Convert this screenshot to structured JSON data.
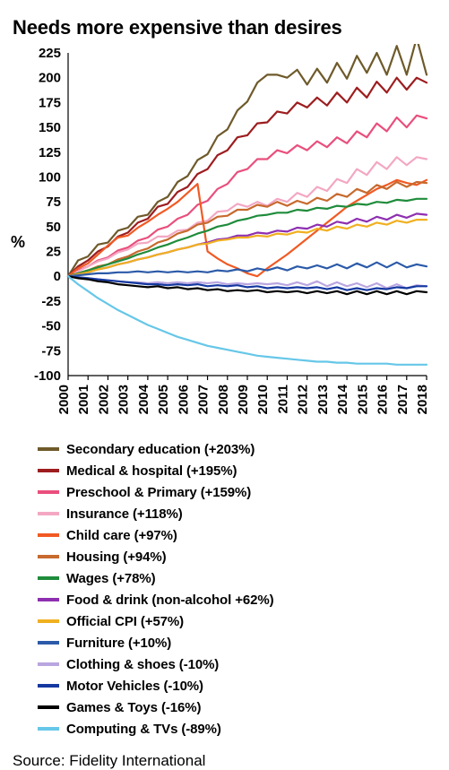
{
  "title": "Needs more expensive than desires",
  "pct_symbol": "%",
  "source": "Source: Fidelity International",
  "chart": {
    "type": "line",
    "background_color": "#ffffff",
    "axis_color": "#000000",
    "label_fontsize": 15,
    "label_fontweight": 700,
    "x": {
      "min": 2000,
      "max": 2018,
      "ticks": [
        2000,
        2001,
        2002,
        2003,
        2004,
        2005,
        2006,
        2007,
        2008,
        2009,
        2010,
        2011,
        2012,
        2013,
        2014,
        2015,
        2016,
        2017,
        2018
      ]
    },
    "y": {
      "min": -100,
      "max": 225,
      "ticks": [
        -100,
        -75,
        -50,
        -25,
        0,
        25,
        50,
        75,
        100,
        125,
        150,
        175,
        200,
        225
      ]
    },
    "series": [
      {
        "id": "secondary_education",
        "label": "Secondary education (+203%)",
        "color": "#6e5a2a",
        "values": [
          0,
          16,
          20,
          32,
          34,
          46,
          49,
          60,
          62,
          75,
          80,
          95,
          101,
          117,
          123,
          141,
          148,
          167,
          176,
          195,
          203,
          203,
          200,
          208,
          193,
          209,
          195,
          215,
          199,
          222,
          205,
          225,
          203,
          232,
          203,
          240,
          203
        ]
      },
      {
        "id": "medical_hospital",
        "label": "Medical & hospital (+195%)",
        "color": "#9d1d1f",
        "values": [
          0,
          10,
          16,
          25,
          30,
          40,
          44,
          54,
          58,
          70,
          73,
          85,
          90,
          103,
          108,
          122,
          127,
          140,
          142,
          154,
          155,
          166,
          164,
          175,
          170,
          180,
          172,
          185,
          175,
          190,
          180,
          196,
          185,
          200,
          188,
          200,
          195
        ]
      },
      {
        "id": "preschool_primary",
        "label": "Preschool  & Primary (+159%)",
        "color": "#e94f7d",
        "values": [
          0,
          6,
          10,
          16,
          19,
          26,
          29,
          36,
          39,
          47,
          50,
          58,
          62,
          72,
          76,
          88,
          93,
          105,
          108,
          118,
          118,
          127,
          124,
          132,
          127,
          136,
          130,
          140,
          134,
          146,
          140,
          154,
          146,
          160,
          150,
          162,
          159
        ]
      },
      {
        "id": "insurance",
        "label": "Insurance (+118%)",
        "color": "#f3a7c3",
        "values": [
          0,
          5,
          10,
          15,
          18,
          24,
          27,
          33,
          34,
          40,
          40,
          46,
          47,
          54,
          56,
          65,
          66,
          73,
          70,
          75,
          71,
          78,
          75,
          84,
          80,
          90,
          86,
          98,
          94,
          108,
          102,
          115,
          108,
          120,
          112,
          120,
          118
        ]
      },
      {
        "id": "child_care",
        "label": "Child care (+97%)",
        "color": "#f15a24",
        "values": [
          0,
          8,
          13,
          22,
          31,
          39,
          41,
          49,
          55,
          62,
          68,
          75,
          84,
          93,
          25,
          18,
          12,
          8,
          3,
          0,
          8,
          15,
          22,
          30,
          38,
          46,
          54,
          62,
          70,
          76,
          82,
          88,
          92,
          97,
          94,
          92,
          97
        ]
      },
      {
        "id": "housing",
        "label": "Housing (+94%)",
        "color": "#c76a2e",
        "values": [
          0,
          3,
          6,
          10,
          12,
          17,
          20,
          25,
          28,
          34,
          37,
          43,
          46,
          52,
          54,
          60,
          61,
          67,
          67,
          72,
          70,
          75,
          71,
          76,
          73,
          79,
          76,
          83,
          80,
          88,
          84,
          92,
          88,
          95,
          90,
          95,
          94
        ]
      },
      {
        "id": "wages",
        "label": "Wages (+78%)",
        "color": "#1f8c3b",
        "values": [
          0,
          3,
          6,
          9,
          12,
          15,
          18,
          22,
          25,
          29,
          32,
          36,
          39,
          43,
          46,
          50,
          52,
          56,
          58,
          61,
          62,
          64,
          64,
          67,
          66,
          69,
          68,
          71,
          70,
          73,
          72,
          75,
          74,
          77,
          76,
          78,
          78
        ]
      },
      {
        "id": "food_drink",
        "label": "Food & drink (non-alcohol +62%)",
        "color": "#8e2fb0",
        "values": [
          0,
          2,
          4,
          7,
          9,
          12,
          14,
          17,
          19,
          22,
          24,
          27,
          29,
          32,
          34,
          37,
          38,
          41,
          41,
          44,
          43,
          46,
          45,
          49,
          48,
          52,
          50,
          55,
          53,
          58,
          55,
          60,
          57,
          62,
          59,
          63,
          62
        ]
      },
      {
        "id": "official_cpi",
        "label": "Official CPI (+57%)",
        "color": "#f0b020",
        "values": [
          0,
          2,
          4,
          7,
          9,
          12,
          14,
          17,
          19,
          22,
          24,
          27,
          29,
          32,
          33,
          36,
          37,
          39,
          39,
          41,
          40,
          43,
          42,
          45,
          44,
          48,
          46,
          50,
          48,
          52,
          50,
          54,
          52,
          56,
          54,
          57,
          57
        ]
      },
      {
        "id": "furniture",
        "label": "Furniture (+10%)",
        "color": "#2b5aa8",
        "values": [
          0,
          1,
          2,
          3,
          3,
          4,
          4,
          5,
          4,
          5,
          4,
          5,
          4,
          5,
          4,
          6,
          5,
          7,
          5,
          8,
          6,
          9,
          6,
          10,
          8,
          11,
          8,
          12,
          8,
          13,
          9,
          14,
          9,
          14,
          9,
          12,
          10
        ]
      },
      {
        "id": "clothing_shoes",
        "label": "Clothing & shoes (-10%)",
        "color": "#b9a6e0",
        "values": [
          0,
          -1,
          -2,
          -3,
          -4,
          -5,
          -6,
          -6,
          -7,
          -6,
          -7,
          -6,
          -7,
          -6,
          -7,
          -6,
          -8,
          -7,
          -8,
          -7,
          -8,
          -7,
          -9,
          -6,
          -9,
          -5,
          -10,
          -6,
          -10,
          -7,
          -11,
          -7,
          -12,
          -8,
          -12,
          -9,
          -10
        ]
      },
      {
        "id": "motor_vehicles",
        "label": "Motor Vehicles (-10%)",
        "color": "#1438a0",
        "values": [
          0,
          -1,
          -2,
          -3,
          -4,
          -5,
          -6,
          -7,
          -8,
          -8,
          -9,
          -8,
          -9,
          -8,
          -10,
          -9,
          -10,
          -9,
          -11,
          -10,
          -12,
          -11,
          -12,
          -11,
          -12,
          -11,
          -13,
          -11,
          -14,
          -12,
          -14,
          -12,
          -13,
          -11,
          -12,
          -10,
          -10
        ]
      },
      {
        "id": "games_toys",
        "label": "Games & Toys (-16%)",
        "color": "#000000",
        "values": [
          0,
          -2,
          -3,
          -5,
          -6,
          -8,
          -9,
          -10,
          -11,
          -10,
          -12,
          -11,
          -13,
          -12,
          -14,
          -13,
          -15,
          -14,
          -15,
          -14,
          -16,
          -15,
          -16,
          -15,
          -17,
          -15,
          -17,
          -15,
          -18,
          -15,
          -18,
          -15,
          -18,
          -15,
          -18,
          -15,
          -16
        ]
      },
      {
        "id": "computing_tvs",
        "label": "Computing & TVs (-89%)",
        "color": "#66c7e8",
        "values": [
          0,
          -8,
          -15,
          -22,
          -28,
          -34,
          -39,
          -44,
          -49,
          -53,
          -57,
          -61,
          -64,
          -67,
          -70,
          -72,
          -74,
          -76,
          -78,
          -80,
          -81,
          -82,
          -83,
          -84,
          -85,
          -86,
          -86,
          -87,
          -87,
          -88,
          -88,
          -88,
          -88,
          -89,
          -89,
          -89,
          -89
        ]
      }
    ]
  }
}
